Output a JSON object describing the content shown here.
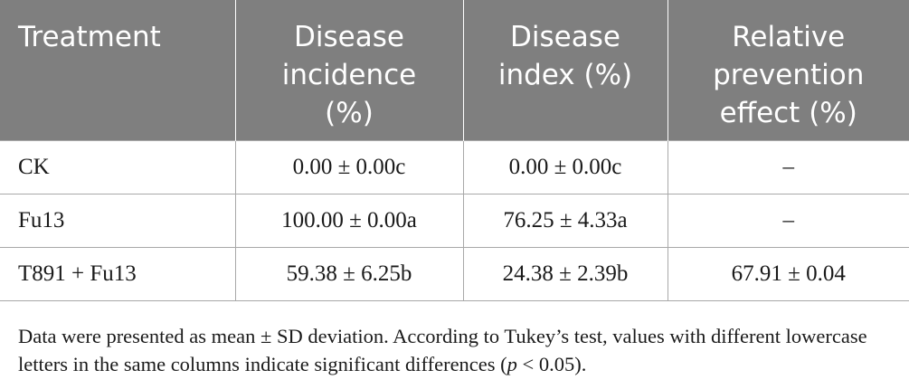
{
  "table": {
    "headers": [
      "Treatment",
      "Disease incidence (%)",
      "Disease index (%)",
      "Relative prevention effect (%)"
    ],
    "rows": [
      [
        "CK",
        "0.00 ± 0.00c",
        "0.00 ± 0.00c",
        "–"
      ],
      [
        "Fu13",
        "100.00 ± 0.00a",
        "76.25 ± 4.33a",
        "–"
      ],
      [
        "T891 + Fu13",
        "59.38 ± 6.25b",
        "24.38 ± 2.39b",
        "67.91 ± 0.04"
      ]
    ]
  },
  "footnote": {
    "text_before": "Data were presented as mean ± SD deviation. According to Tukey’s test, values with different lowercase letters in the same columns indicate significant differences (",
    "p_symbol": "p",
    "text_after": " < 0.05)."
  },
  "colors": {
    "header_bg": "#7f7f7f",
    "header_text": "#ffffff",
    "rule": "#a8a8a8"
  }
}
